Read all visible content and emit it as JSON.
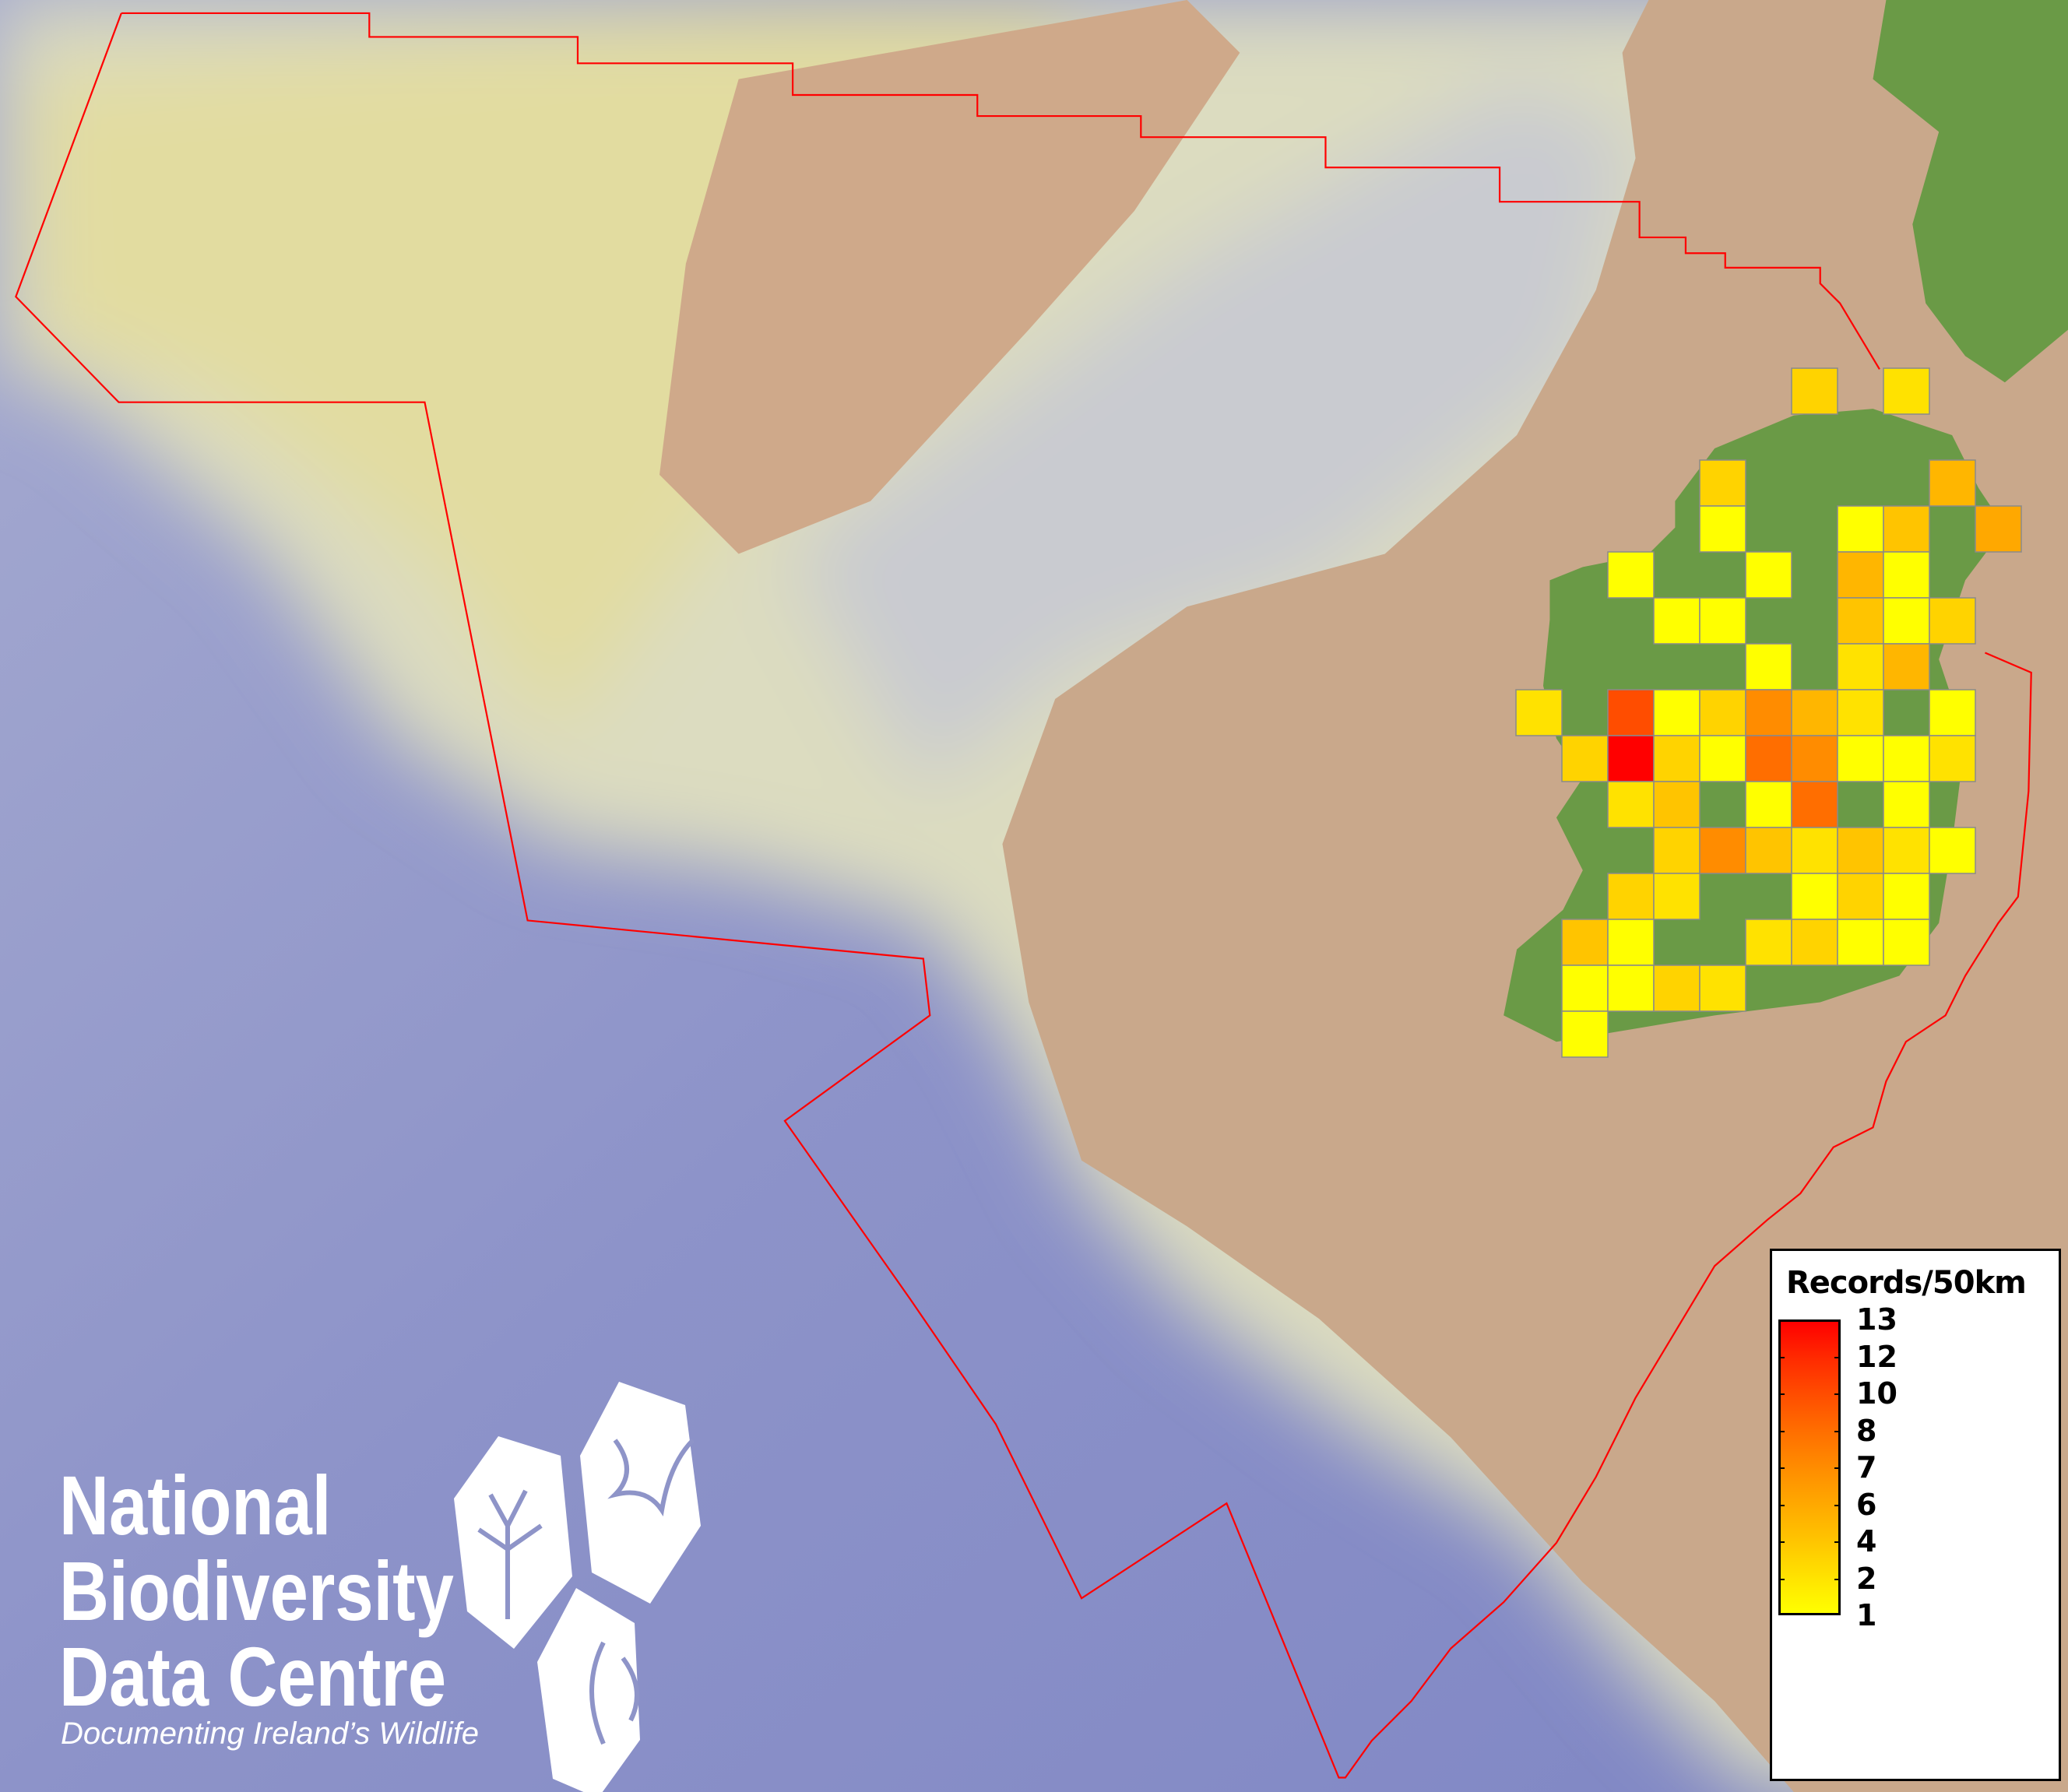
{
  "legend": {
    "title": "Records/50km",
    "labels": [
      "13",
      "12",
      "10",
      "8",
      "7",
      "6",
      "4",
      "2",
      "1"
    ],
    "gradient_colors": [
      "#ff0000",
      "#ff2a00",
      "#ff4d00",
      "#ff6e00",
      "#ff8c00",
      "#ffa800",
      "#ffc400",
      "#ffe200",
      "#ffff00"
    ]
  },
  "colors": {
    "ocean": "#8e94c8",
    "shelf": "#d9d8b6",
    "land_background": "#c9a88b",
    "land_ireland": "#6a9a46",
    "boundary": "#ff0000",
    "cell_border": "#8a8a8a"
  },
  "map": {
    "grid_cell_size": "50km",
    "cells": [
      {
        "row": 0,
        "col": 6,
        "value": 3
      },
      {
        "row": 0,
        "col": 8,
        "value": 2
      },
      {
        "row": 2,
        "col": 4,
        "value": 3
      },
      {
        "row": 2,
        "col": 9,
        "value": 5
      },
      {
        "row": 3,
        "col": 4,
        "value": 1
      },
      {
        "row": 3,
        "col": 7,
        "value": 1
      },
      {
        "row": 3,
        "col": 8,
        "value": 4
      },
      {
        "row": 3,
        "col": 10,
        "value": 6
      },
      {
        "row": 4,
        "col": 2,
        "value": 1
      },
      {
        "row": 4,
        "col": 5,
        "value": 1
      },
      {
        "row": 4,
        "col": 7,
        "value": 5
      },
      {
        "row": 4,
        "col": 8,
        "value": 1
      },
      {
        "row": 5,
        "col": 3,
        "value": 1
      },
      {
        "row": 5,
        "col": 4,
        "value": 1
      },
      {
        "row": 5,
        "col": 7,
        "value": 4
      },
      {
        "row": 5,
        "col": 8,
        "value": 1
      },
      {
        "row": 5,
        "col": 9,
        "value": 3
      },
      {
        "row": 6,
        "col": 5,
        "value": 1
      },
      {
        "row": 6,
        "col": 7,
        "value": 2
      },
      {
        "row": 6,
        "col": 8,
        "value": 5
      },
      {
        "row": 7,
        "col": 0,
        "value": 2
      },
      {
        "row": 7,
        "col": 2,
        "value": 10
      },
      {
        "row": 7,
        "col": 3,
        "value": 1
      },
      {
        "row": 7,
        "col": 4,
        "value": 3
      },
      {
        "row": 7,
        "col": 5,
        "value": 7
      },
      {
        "row": 7,
        "col": 6,
        "value": 5
      },
      {
        "row": 7,
        "col": 7,
        "value": 2
      },
      {
        "row": 7,
        "col": 9,
        "value": 1
      },
      {
        "row": 8,
        "col": 1,
        "value": 3
      },
      {
        "row": 8,
        "col": 2,
        "value": 13
      },
      {
        "row": 8,
        "col": 3,
        "value": 3
      },
      {
        "row": 8,
        "col": 4,
        "value": 1
      },
      {
        "row": 8,
        "col": 5,
        "value": 8
      },
      {
        "row": 8,
        "col": 6,
        "value": 7
      },
      {
        "row": 8,
        "col": 7,
        "value": 1
      },
      {
        "row": 8,
        "col": 8,
        "value": 1
      },
      {
        "row": 8,
        "col": 9,
        "value": 2
      },
      {
        "row": 9,
        "col": 2,
        "value": 2
      },
      {
        "row": 9,
        "col": 3,
        "value": 4
      },
      {
        "row": 9,
        "col": 5,
        "value": 1
      },
      {
        "row": 9,
        "col": 6,
        "value": 8
      },
      {
        "row": 9,
        "col": 8,
        "value": 1
      },
      {
        "row": 10,
        "col": 3,
        "value": 3
      },
      {
        "row": 10,
        "col": 4,
        "value": 7
      },
      {
        "row": 10,
        "col": 5,
        "value": 4
      },
      {
        "row": 10,
        "col": 6,
        "value": 2
      },
      {
        "row": 10,
        "col": 7,
        "value": 4
      },
      {
        "row": 10,
        "col": 8,
        "value": 2
      },
      {
        "row": 10,
        "col": 9,
        "value": 1
      },
      {
        "row": 11,
        "col": 2,
        "value": 3
      },
      {
        "row": 11,
        "col": 3,
        "value": 2
      },
      {
        "row": 11,
        "col": 6,
        "value": 1
      },
      {
        "row": 11,
        "col": 7,
        "value": 3
      },
      {
        "row": 11,
        "col": 8,
        "value": 1
      },
      {
        "row": 12,
        "col": 1,
        "value": 4
      },
      {
        "row": 12,
        "col": 2,
        "value": 1
      },
      {
        "row": 12,
        "col": 5,
        "value": 2
      },
      {
        "row": 12,
        "col": 6,
        "value": 3
      },
      {
        "row": 12,
        "col": 7,
        "value": 1
      },
      {
        "row": 12,
        "col": 8,
        "value": 1
      },
      {
        "row": 13,
        "col": 1,
        "value": 1
      },
      {
        "row": 13,
        "col": 2,
        "value": 1
      },
      {
        "row": 13,
        "col": 3,
        "value": 3
      },
      {
        "row": 13,
        "col": 4,
        "value": 2
      },
      {
        "row": 14,
        "col": 1,
        "value": 1
      }
    ]
  },
  "logo": {
    "line1": "National",
    "line2": "Biodiversity",
    "line3": "Data Centre",
    "tagline": "Documenting Ireland’s Wildlife",
    "icons": [
      "tree-icon",
      "butterfly-icon",
      "seahorse-icon"
    ]
  }
}
